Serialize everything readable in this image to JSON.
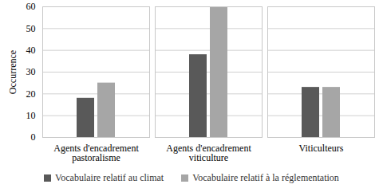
{
  "chart_data": {
    "type": "bar",
    "categories": [
      "Agents d'encadrement pastoralisme",
      "Agents d'encadrement viticulture",
      "Viticulteurs"
    ],
    "series": [
      {
        "name": "Vocabulaire relatif au climat",
        "color": "#595959",
        "values": [
          18,
          38,
          23
        ]
      },
      {
        "name": "Vocabulaire relatif à la réglementation",
        "color": "#a6a6a6",
        "values": [
          25,
          60,
          23
        ]
      }
    ],
    "ylabel": "Occurrence",
    "ylim": [
      0,
      60
    ],
    "yticks": [
      0,
      10,
      20,
      30,
      40,
      50,
      60
    ],
    "grid": true,
    "legend": "bottom"
  }
}
